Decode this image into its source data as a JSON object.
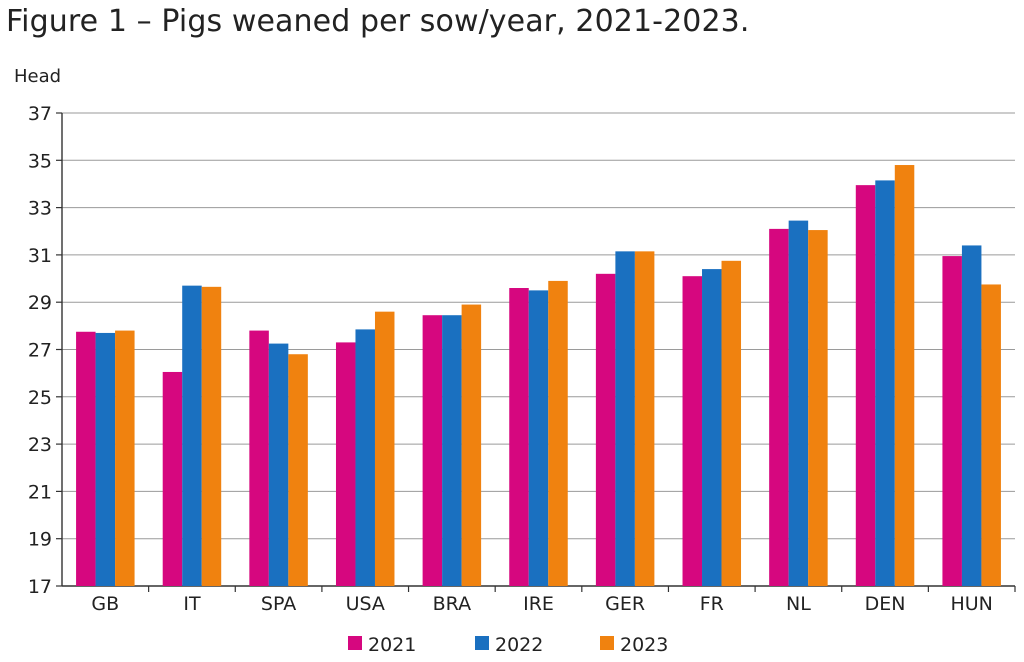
{
  "chart_data": {
    "type": "bar",
    "title": "Figure 1 – Pigs weaned per sow/year, 2021-2023.",
    "xlabel": "",
    "ylabel": "Head",
    "ylim": [
      17,
      37
    ],
    "yticks": [
      17,
      19,
      21,
      23,
      25,
      27,
      29,
      31,
      33,
      35,
      37
    ],
    "grid": "horizontal",
    "legend": "bottom",
    "categories": [
      "GB",
      "IT",
      "SPA",
      "USA",
      "BRA",
      "IRE",
      "GER",
      "FR",
      "NL",
      "DEN",
      "HUN"
    ],
    "series": [
      {
        "name": "2021",
        "color": "#d6077f",
        "values": [
          27.75,
          26.05,
          27.8,
          27.3,
          28.45,
          29.6,
          30.2,
          30.1,
          32.1,
          33.95,
          30.95
        ]
      },
      {
        "name": "2022",
        "color": "#1a70c0",
        "values": [
          27.7,
          29.7,
          27.25,
          27.85,
          28.45,
          29.5,
          31.15,
          30.4,
          32.45,
          34.15,
          31.4
        ]
      },
      {
        "name": "2023",
        "color": "#f0820f",
        "values": [
          27.8,
          29.65,
          26.8,
          28.6,
          28.9,
          29.9,
          31.15,
          30.75,
          32.05,
          34.8,
          29.75
        ]
      }
    ]
  }
}
